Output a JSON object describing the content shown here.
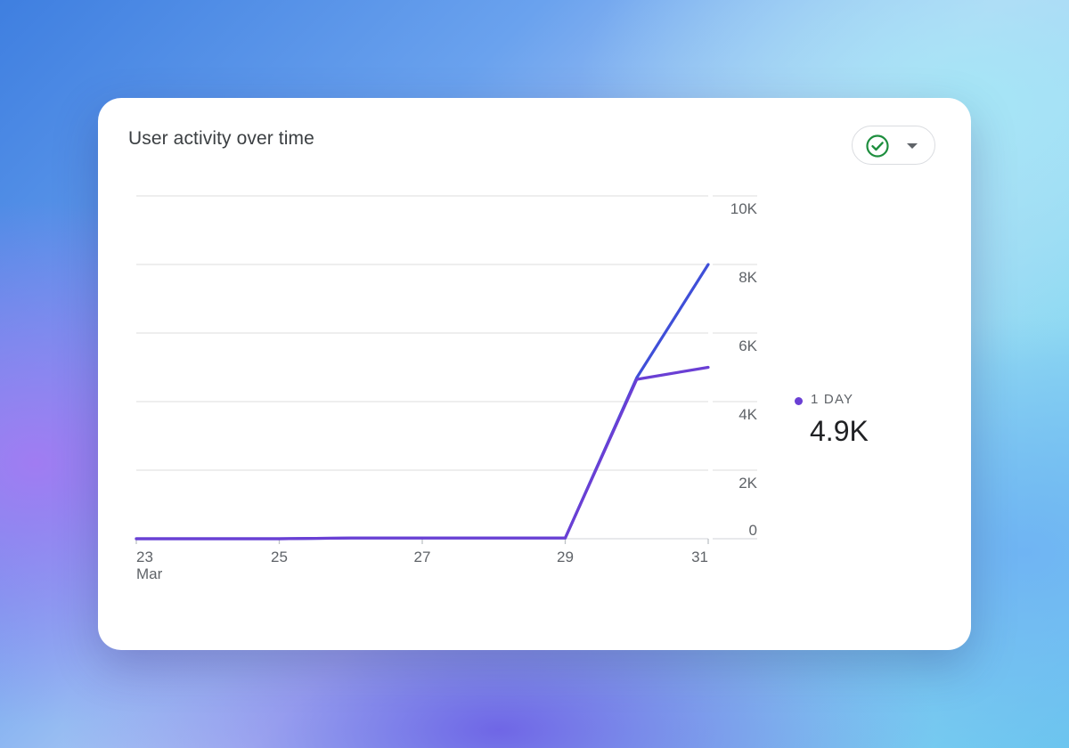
{
  "card": {
    "title": "User activity over time",
    "compare_icon": "check-circle-icon",
    "dropdown_icon": "caret-down-icon"
  },
  "legend": {
    "label": "1 DAY",
    "value": "4.9K",
    "color": "#6a3fd4"
  },
  "chart_data": {
    "type": "line",
    "title": "User activity over time",
    "x": [
      23,
      24,
      25,
      26,
      27,
      28,
      29,
      30,
      31
    ],
    "x_tick_labels": [
      "23",
      "25",
      "27",
      "29",
      "31"
    ],
    "x_tick_values": [
      23,
      25,
      27,
      29,
      31
    ],
    "x_sublabel": "Mar",
    "y_tick_labels": [
      "0",
      "2K",
      "4K",
      "6K",
      "8K",
      "10K"
    ],
    "y_tick_values": [
      0,
      2000,
      4000,
      6000,
      8000,
      10000
    ],
    "ylim": [
      0,
      10000
    ],
    "grid": true,
    "y_axis_position": "right",
    "legend_position": "right",
    "series": [
      {
        "color": "#3f4fd8",
        "values": [
          0,
          0,
          0,
          20,
          20,
          20,
          20,
          4700,
          8000
        ]
      },
      {
        "name": "1 DAY",
        "color": "#6a3fd4",
        "values": [
          0,
          0,
          0,
          20,
          20,
          20,
          20,
          4650,
          5000
        ]
      }
    ]
  }
}
